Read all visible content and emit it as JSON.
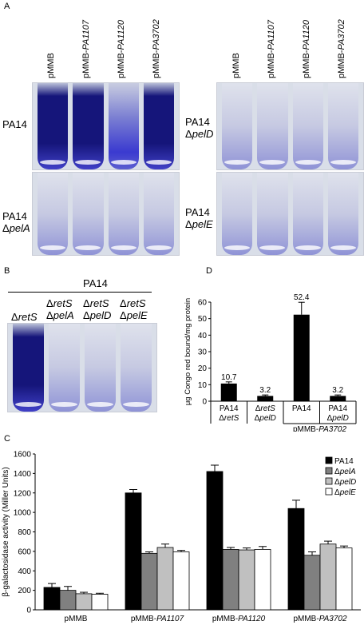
{
  "panels": {
    "A": {
      "letter": "A",
      "columns": [
        "pMMB",
        "pMMB-PA1107",
        "pMMB-PA1120",
        "pMMB-PA3702"
      ],
      "col_prefix": "pMMB-",
      "col_genes": [
        "PA1107",
        "PA1120",
        "PA3702"
      ],
      "strains": {
        "top_left": {
          "l1": "PA14",
          "l2": ""
        },
        "top_right": {
          "l1": "PA14",
          "l2": "ΔpelD"
        },
        "bottom_left": {
          "l1": "PA14",
          "l2": "ΔpelA"
        },
        "bottom_right": {
          "l1": "PA14",
          "l2": "ΔpelE"
        }
      },
      "dye_colors": {
        "strong": "#15157a",
        "medium": "#3a3ad0",
        "light": "#8f93d6"
      }
    },
    "B": {
      "letter": "B",
      "header": "PA14",
      "cols": [
        {
          "l1": "ΔretS",
          "l2": ""
        },
        {
          "l1": "ΔretS",
          "l2": "ΔpelA"
        },
        {
          "l1": "ΔretS",
          "l2": "ΔpelD"
        },
        {
          "l1": "ΔretS",
          "l2": "ΔpelE"
        }
      ]
    },
    "C": {
      "letter": "C"
    },
    "D": {
      "letter": "D"
    }
  },
  "chart_data": [
    {
      "id": "D",
      "type": "bar",
      "ylabel": "μg Congo red bound/mg protein",
      "ylim": [
        0,
        60
      ],
      "yticks": [
        0,
        10,
        20,
        30,
        40,
        50,
        60
      ],
      "categories": [
        {
          "l1": "PA14",
          "l2": "ΔretS"
        },
        {
          "l1": "ΔretS",
          "l2": "ΔpelD"
        },
        {
          "l1": "PA14",
          "l2": ""
        },
        {
          "l1": "PA14",
          "l2": "ΔpelD"
        }
      ],
      "group_label": "pMMB-PA3702",
      "values": [
        10.7,
        3.2,
        52.4,
        3.2
      ],
      "value_labels": [
        "10.7",
        "3.2",
        "52.4",
        "3.2"
      ],
      "errors": [
        1.0,
        0.6,
        7.5,
        0.6
      ],
      "color": "#000000"
    },
    {
      "id": "C",
      "type": "bar",
      "ylabel": "β-galactosidase activity (Miller Units)",
      "ylim": [
        0,
        1600
      ],
      "yticks": [
        0,
        200,
        400,
        600,
        800,
        1000,
        1200,
        1400,
        1600
      ],
      "categories": [
        "pMMB",
        "pMMB-PA1107",
        "pMMB-PA1120",
        "pMMB-PA3702"
      ],
      "series": [
        {
          "name": "PA14",
          "color": "#000000",
          "values": [
            230,
            1200,
            1420,
            1040
          ],
          "errors": [
            40,
            35,
            65,
            85
          ]
        },
        {
          "name": "ΔpelA",
          "color": "#808080",
          "values": [
            200,
            580,
            620,
            560
          ],
          "errors": [
            40,
            15,
            20,
            35
          ]
        },
        {
          "name": "ΔpelD",
          "color": "#c0c0c0",
          "values": [
            165,
            640,
            615,
            675
          ],
          "errors": [
            15,
            35,
            20,
            30
          ]
        },
        {
          "name": "ΔpelE",
          "color": "#ffffff",
          "values": [
            160,
            595,
            620,
            635
          ],
          "errors": [
            10,
            15,
            30,
            20
          ]
        }
      ],
      "legend_position": "top-right"
    }
  ]
}
